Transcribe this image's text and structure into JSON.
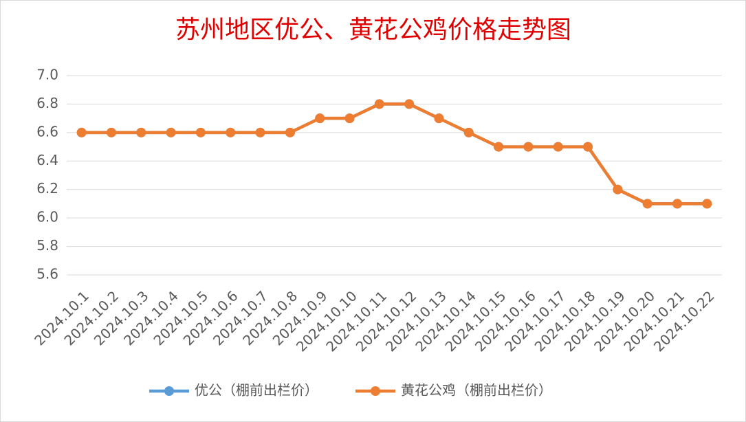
{
  "chart_data": {
    "type": "line",
    "title": "苏州地区优公、黄花公鸡价格走势图",
    "categories": [
      "2024.10.1",
      "2024.10.2",
      "2024.10.3",
      "2024.10.4",
      "2024.10.5",
      "2024.10.6",
      "2024.10.7",
      "2024.10.8",
      "2024.10.9",
      "2024.10.10",
      "2024.10.11",
      "2024.10.12",
      "2024.10.13",
      "2024.10.14",
      "2024.10.15",
      "2024.10.16",
      "2024.10.17",
      "2024.10.18",
      "2024.10.19",
      "2024.10.20",
      "2024.10.21",
      "2024.10.22"
    ],
    "series": [
      {
        "name": "优公（棚前出栏价）",
        "color": "#5b9bd5",
        "values": [
          6.6,
          6.6,
          6.6,
          6.6,
          6.6,
          6.6,
          6.6,
          6.6,
          6.7,
          6.7,
          6.8,
          6.8,
          6.7,
          6.6,
          6.5,
          6.5,
          6.5,
          6.5,
          6.2,
          6.1,
          6.1,
          6.1
        ]
      },
      {
        "name": "黄花公鸡（棚前出栏价）",
        "color": "#ed7d31",
        "values": [
          6.6,
          6.6,
          6.6,
          6.6,
          6.6,
          6.6,
          6.6,
          6.6,
          6.7,
          6.7,
          6.8,
          6.8,
          6.7,
          6.6,
          6.5,
          6.5,
          6.5,
          6.5,
          6.2,
          6.1,
          6.1,
          6.1
        ]
      }
    ],
    "ylim": [
      5.6,
      7.0
    ],
    "yticks": [
      5.6,
      5.8,
      {
        "value": 6,
        "label": "6.0"
      },
      6.2,
      6.4,
      6.6,
      6.8,
      {
        "value": 7,
        "label": "7.0"
      }
    ],
    "grid": true,
    "legend": "bottom"
  }
}
